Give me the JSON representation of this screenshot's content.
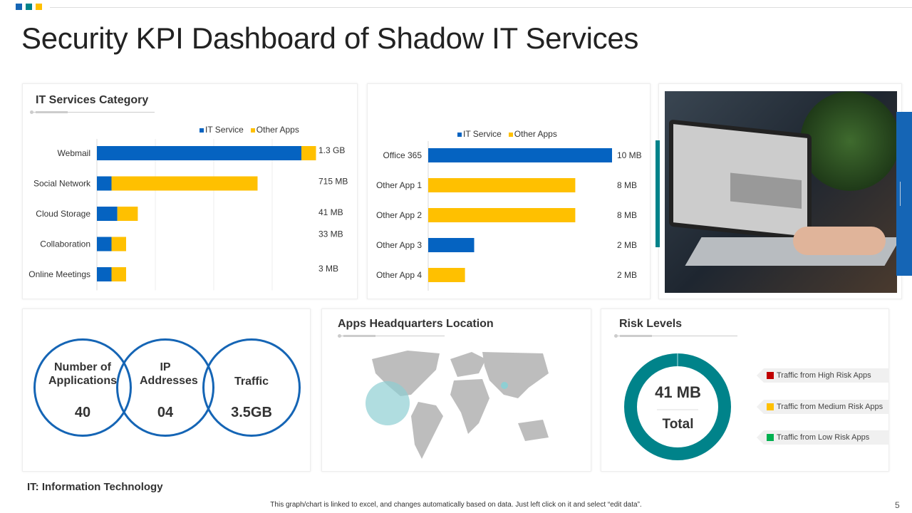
{
  "title": "Security KPI Dashboard of Shadow IT Services",
  "colors": {
    "it_service": "#0563c1",
    "other_apps": "#ffc000",
    "teal": "#00838a",
    "circle_blue": "#1565b5",
    "high": "#c00000",
    "medium": "#ffc000",
    "low": "#00b050"
  },
  "panel1": {
    "title": "IT Services Category"
  },
  "chart_data": [
    {
      "type": "bar",
      "orientation": "horizontal",
      "stacked": true,
      "title": "IT Services Category",
      "legend": [
        "IT Service",
        "Other Apps"
      ],
      "legend_position": "top",
      "categories": [
        "Webmail",
        "Social Network",
        "Cloud Storage",
        "Collaboration",
        "Online Meetings"
      ],
      "series": [
        {
          "name": "IT Service",
          "values": [
            3.5,
            0.25,
            0.35,
            0.25,
            0.25
          ]
        },
        {
          "name": "Other Apps",
          "values": [
            0.25,
            2.5,
            0.35,
            0.25,
            0.25
          ]
        }
      ],
      "data_labels": [
        "1.3 GB",
        "715 MB",
        "41 MB",
        "33 MB",
        "3 MB"
      ],
      "xlim": [
        0,
        4
      ],
      "grid": true
    },
    {
      "type": "bar",
      "orientation": "horizontal",
      "stacked": true,
      "legend": [
        "IT Service",
        "Other Apps"
      ],
      "legend_position": "top",
      "categories": [
        "Office 365",
        "Other App 1",
        "Other App 2",
        "Other App 3",
        "Other App 4"
      ],
      "series": [
        {
          "name": "IT Service",
          "values": [
            10,
            0,
            0,
            2.5,
            0
          ]
        },
        {
          "name": "Other Apps",
          "values": [
            0,
            8,
            8,
            0,
            2
          ]
        }
      ],
      "data_labels": [
        "10 MB",
        "8 MB",
        "8 MB",
        "2 MB",
        "2 MB"
      ],
      "xlim": [
        0,
        10
      ],
      "grid": false
    },
    {
      "type": "pie",
      "donut": true,
      "title": "Risk Levels",
      "center_value": "41 MB",
      "center_label": "Total",
      "legend": [
        "Traffic from High Risk Apps",
        "Traffic from Medium Risk Apps",
        "Traffic from Low Risk Apps"
      ],
      "legend_position": "right"
    }
  ],
  "kpis": [
    {
      "label": "Number of Applications",
      "value": "40"
    },
    {
      "label": "IP Addresses",
      "value": "04"
    },
    {
      "label": "Traffic",
      "value": "3.5GB"
    }
  ],
  "map": {
    "title": "Apps Headquarters Location"
  },
  "footnote": "IT: Information Technology",
  "footer": "This graph/chart is linked to excel, and changes automatically based on data. Just left click on it and select “edit data”.",
  "page_number": "5"
}
